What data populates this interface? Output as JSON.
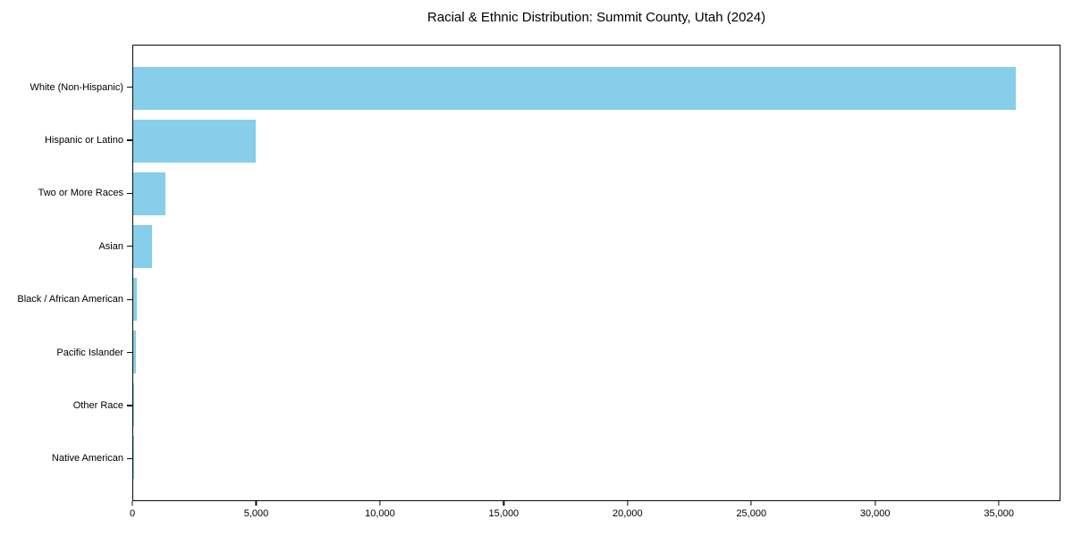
{
  "title": "Racial & Ethnic Distribution: Summit County, Utah (2024)",
  "colors": {
    "bar": "#87CEEB",
    "axis": "#0a0a0a",
    "text": "#000000",
    "background": "#ffffff"
  },
  "chart_data": {
    "type": "bar",
    "orientation": "horizontal",
    "title": "Racial & Ethnic Distribution: Summit County, Utah (2024)",
    "xlabel": "",
    "ylabel": "",
    "categories": [
      "White (Non-Hispanic)",
      "Hispanic or Latino",
      "Two or More Races",
      "Asian",
      "Black / African American",
      "Pacific Islander",
      "Other Race",
      "Native American"
    ],
    "values": [
      35700,
      4950,
      1300,
      760,
      160,
      100,
      30,
      25
    ],
    "xlim": [
      0,
      37485
    ],
    "xticks": [
      0,
      5000,
      10000,
      15000,
      20000,
      25000,
      30000,
      35000
    ],
    "xtick_labels": [
      "0",
      "5,000",
      "10,000",
      "15,000",
      "20,000",
      "25,000",
      "30,000",
      "35,000"
    ],
    "grid": false,
    "legend": false,
    "bar_color": "#87CEEB"
  }
}
